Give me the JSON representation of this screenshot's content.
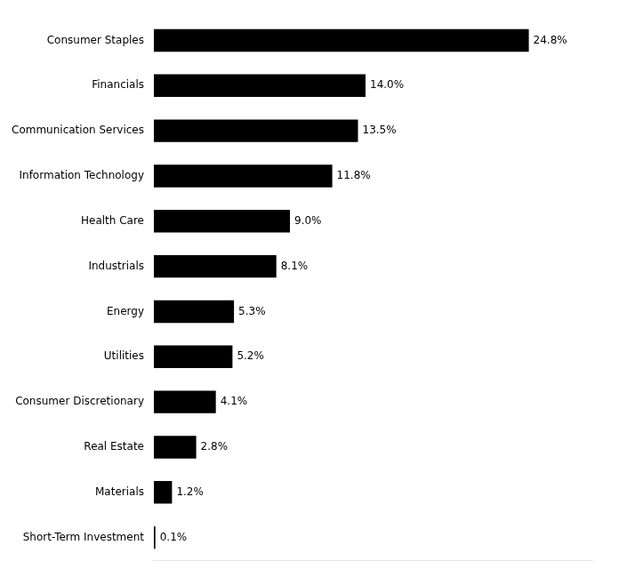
{
  "chart_data": {
    "type": "bar",
    "orientation": "horizontal",
    "categories": [
      "Short-Term Investment",
      "Materials",
      "Real Estate",
      "Consumer Discretionary",
      "Utilities",
      "Energy",
      "Industrials",
      "Health Care",
      "Information Technology",
      "Communication Services",
      "Financials",
      "Consumer Staples"
    ],
    "values": [
      0.1,
      1.2,
      2.8,
      4.1,
      5.2,
      5.3,
      8.1,
      9.0,
      11.8,
      13.5,
      14.0,
      24.8
    ],
    "value_labels": [
      "0.1%",
      "1.2%",
      "2.8%",
      "4.1%",
      "5.2%",
      "5.3%",
      "8.1%",
      "9.0%",
      "11.8%",
      "13.5%",
      "14.0%",
      "24.8%"
    ],
    "data_labels": true,
    "color": "#000000",
    "xlim": [
      0,
      29
    ],
    "grid": false,
    "tick_labels": "y"
  }
}
